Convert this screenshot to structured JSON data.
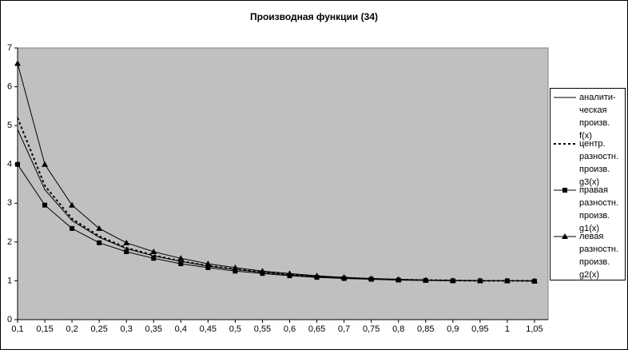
{
  "chart_data": {
    "type": "line",
    "title": "Производная функции (34)",
    "x": [
      0.1,
      0.15,
      0.2,
      0.25,
      0.3,
      0.35,
      0.4,
      0.45,
      0.5,
      0.55,
      0.6,
      0.65,
      0.7,
      0.75,
      0.8,
      0.85,
      0.9,
      0.95,
      1.0,
      1.05
    ],
    "xlim": [
      0.1,
      1.075
    ],
    "xticks": [
      {
        "value": 0.1,
        "label": "0,1"
      },
      {
        "value": 0.15,
        "label": "0,15"
      },
      {
        "value": 0.2,
        "label": "0,2"
      },
      {
        "value": 0.25,
        "label": "0,25"
      },
      {
        "value": 0.3,
        "label": "0,3"
      },
      {
        "value": 0.35,
        "label": "0,35"
      },
      {
        "value": 0.4,
        "label": "0,4"
      },
      {
        "value": 0.45,
        "label": "0,45"
      },
      {
        "value": 0.5,
        "label": "0,5"
      },
      {
        "value": 0.55,
        "label": "0,55"
      },
      {
        "value": 0.6,
        "label": "0,6"
      },
      {
        "value": 0.65,
        "label": "0,65"
      },
      {
        "value": 0.7,
        "label": "0,7"
      },
      {
        "value": 0.75,
        "label": "0,75"
      },
      {
        "value": 0.8,
        "label": "0,8"
      },
      {
        "value": 0.85,
        "label": "0,85"
      },
      {
        "value": 0.9,
        "label": "0,9"
      },
      {
        "value": 0.95,
        "label": "0,95"
      },
      {
        "value": 1.0,
        "label": "1"
      },
      {
        "value": 1.05,
        "label": "1,05"
      }
    ],
    "ylim": [
      0,
      7
    ],
    "yticks": [
      0,
      1,
      2,
      3,
      4,
      5,
      6,
      7
    ],
    "legend": "right",
    "series": [
      {
        "name": "аналити-\nческая\nпроизв.\nf(x)",
        "color": "#000000",
        "dash": "solid",
        "marker": "none",
        "values": [
          4.9,
          3.35,
          2.55,
          2.12,
          1.83,
          1.64,
          1.5,
          1.38,
          1.29,
          1.22,
          1.16,
          1.11,
          1.08,
          1.05,
          1.03,
          1.02,
          1.01,
          1.0,
          1.0,
          1.0
        ]
      },
      {
        "name": "центр.\nразностн.\nпроизв.\ng3(x)",
        "color": "#000000",
        "dash": "dotted",
        "marker": "none",
        "values": [
          5.2,
          3.45,
          2.6,
          2.15,
          1.85,
          1.66,
          1.51,
          1.39,
          1.3,
          1.22,
          1.16,
          1.11,
          1.08,
          1.05,
          1.03,
          1.02,
          1.01,
          1.0,
          1.0,
          1.0
        ]
      },
      {
        "name": "правая\nразностн.\nпроизв.\ng1(x)",
        "color": "#000000",
        "dash": "solid",
        "marker": "square",
        "values": [
          4.0,
          2.95,
          2.35,
          1.98,
          1.75,
          1.58,
          1.44,
          1.34,
          1.25,
          1.19,
          1.13,
          1.09,
          1.06,
          1.04,
          1.02,
          1.01,
          1.0,
          1.0,
          1.0,
          0.99
        ]
      },
      {
        "name": "левая\nразностн.\nпроизв.\ng2(x)",
        "color": "#000000",
        "dash": "solid",
        "marker": "triangle",
        "values": [
          6.6,
          4.0,
          2.95,
          2.35,
          1.98,
          1.75,
          1.58,
          1.44,
          1.34,
          1.25,
          1.19,
          1.13,
          1.09,
          1.06,
          1.04,
          1.02,
          1.01,
          1.0,
          1.0,
          1.0
        ]
      }
    ]
  }
}
